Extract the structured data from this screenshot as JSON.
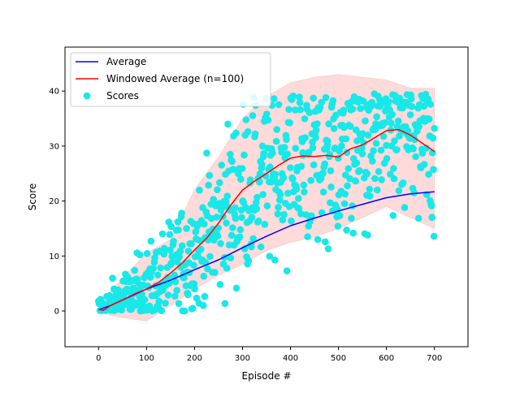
{
  "chart_data": {
    "type": "scatter",
    "xlabel": "Episode #",
    "ylabel": "Score",
    "xlim": [
      -70,
      770
    ],
    "ylim": [
      -6.5,
      48
    ],
    "x_ticks": [
      0,
      100,
      200,
      300,
      400,
      500,
      600,
      700
    ],
    "y_ticks": [
      0,
      10,
      20,
      30,
      40
    ],
    "grid": false,
    "legend_position": "top-left",
    "legend": [
      {
        "label": "Average",
        "kind": "line",
        "color": "#0000ff"
      },
      {
        "label": "Windowed Average (n=100)",
        "kind": "line",
        "color": "#ff0000"
      },
      {
        "label": "Scores",
        "kind": "marker",
        "color": "#18e8e8"
      }
    ],
    "colors": {
      "average": "#0000ff",
      "windowed": "#ff0000",
      "scores": "#18e8e8",
      "band": "#ffd6d6"
    },
    "series": [
      {
        "name": "Average",
        "x": [
          0,
          25,
          50,
          100,
          150,
          200,
          250,
          300,
          350,
          400,
          450,
          500,
          550,
          600,
          650,
          700
        ],
        "y": [
          0.2,
          1.0,
          2.0,
          4.0,
          5.6,
          7.5,
          9.3,
          11.5,
          13.6,
          15.5,
          16.9,
          18.2,
          19.4,
          20.6,
          21.3,
          21.7
        ]
      },
      {
        "name": "Windowed Average (n=100)",
        "x": [
          0,
          10,
          25,
          50,
          75,
          100,
          125,
          150,
          175,
          200,
          225,
          250,
          275,
          300,
          325,
          350,
          375,
          400,
          425,
          450,
          475,
          500,
          525,
          550,
          575,
          600,
          625,
          650,
          675,
          700
        ],
        "y": [
          0.3,
          0.1,
          1.0,
          2.0,
          3.1,
          4.0,
          5.2,
          6.9,
          8.8,
          11.1,
          13.2,
          16.0,
          19.2,
          22.0,
          23.6,
          25.0,
          26.5,
          27.8,
          28.2,
          28.1,
          28.3,
          28.0,
          29.5,
          30.2,
          31.5,
          32.8,
          33.0,
          32.0,
          30.5,
          29.0
        ]
      }
    ],
    "band": {
      "x": [
        0,
        25,
        50,
        100,
        150,
        200,
        250,
        300,
        350,
        400,
        450,
        500,
        550,
        600,
        650,
        700
      ],
      "lower": [
        0.1,
        -0.8,
        -1.2,
        -1.8,
        1.0,
        4.0,
        6.5,
        8.5,
        11.0,
        12.5,
        13.5,
        15.0,
        17.0,
        19.0,
        17.0,
        15.0
      ],
      "upper": [
        0.8,
        3.5,
        6.0,
        10.5,
        13.0,
        22.0,
        28.0,
        35.0,
        39.0,
        41.5,
        42.5,
        43.0,
        42.5,
        42.0,
        40.5,
        40.5
      ]
    },
    "scores_description": "noisy scores around the windowed average, ~700 points",
    "scores_model": {
      "count": 700,
      "x_range": [
        0,
        700
      ],
      "spread_low": 1.5,
      "spread_high": 8.0
    }
  }
}
